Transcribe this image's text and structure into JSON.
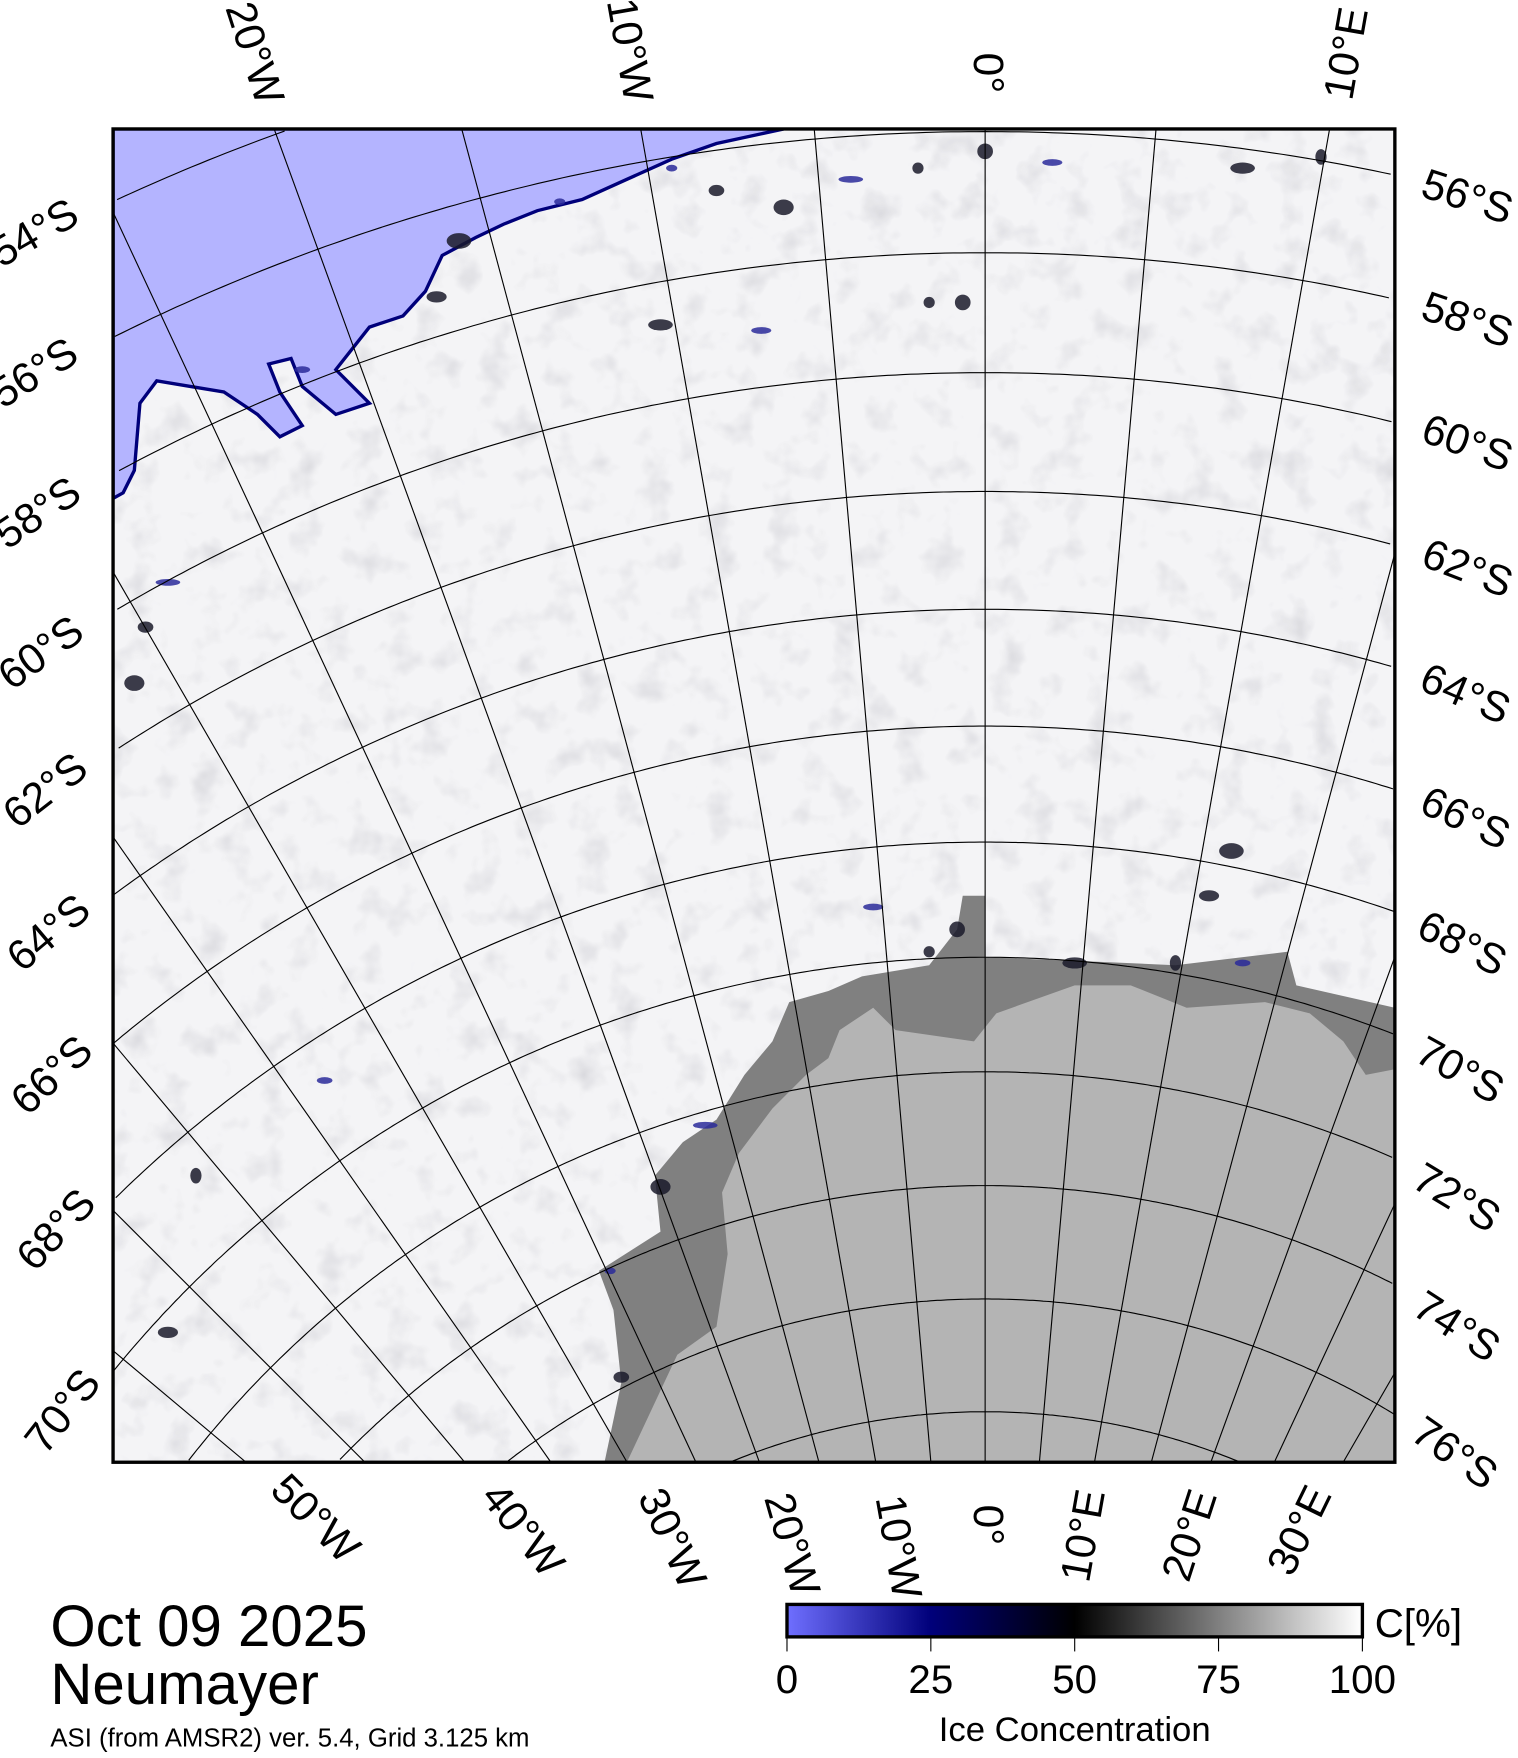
{
  "caption": {
    "date": "Oct 09 2025",
    "station": "Neumayer",
    "subtitle": "ASI (from AMSR2) ver. 5.4,  Grid 3.125 km"
  },
  "colorbar": {
    "unit": "C[%]",
    "label": "Ice Concentration",
    "ticks": [
      "0",
      "25",
      "50",
      "75",
      "100"
    ],
    "stops": [
      {
        "value": 0,
        "color": "#6f6fff"
      },
      {
        "value": 25,
        "color": "#00007a"
      },
      {
        "value": 50,
        "color": "#000000"
      },
      {
        "value": 100,
        "color": "#ffffff"
      }
    ]
  },
  "grid_labels": {
    "top_lon": [
      "20°W",
      "10°W",
      "0°",
      "10°E"
    ],
    "bottom_lon": [
      "50°W",
      "40°W",
      "30°W",
      "20°W",
      "10°W",
      "0°",
      "10°E",
      "20°E",
      "30°E"
    ],
    "left_lat": [
      "54°S",
      "56°S",
      "58°S",
      "60°S",
      "62°S",
      "64°S",
      "66°S",
      "68°S",
      "70°S"
    ],
    "right_lat": [
      "56°S",
      "58°S",
      "60°S",
      "62°S",
      "64°S",
      "66°S",
      "68°S",
      "70°S",
      "72°S",
      "74°S",
      "76°S"
    ]
  },
  "colors": {
    "open_water": "#b4b4ff",
    "ice": "#f4f4f6",
    "ice_shelf": "#808080",
    "land": "#b4b4b4",
    "grid": "#000000"
  }
}
